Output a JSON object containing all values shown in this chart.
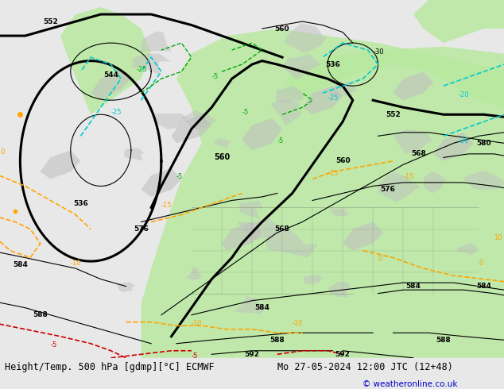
{
  "title_left": "Height/Temp. 500 hPa [gdmp][°C] ECMWF",
  "title_right": "Mo 27-05-2024 12:00 JTC (12+48)",
  "copyright": "© weatheronline.co.uk",
  "bg_color": "#e8e8e8",
  "map_bg": "#f0f0f0",
  "green_fill": "#b8e8a0",
  "gray_fill": "#c0c0c0",
  "black_contour_color": "#000000",
  "orange_contour_color": "#ffa500",
  "red_contour_color": "#cc0000",
  "cyan_contour_color": "#00cccc",
  "green_contour_color": "#00aa00",
  "bottom_bar_color": "#d0d0d0",
  "fig_width": 6.34,
  "fig_height": 4.9,
  "dpi": 100
}
